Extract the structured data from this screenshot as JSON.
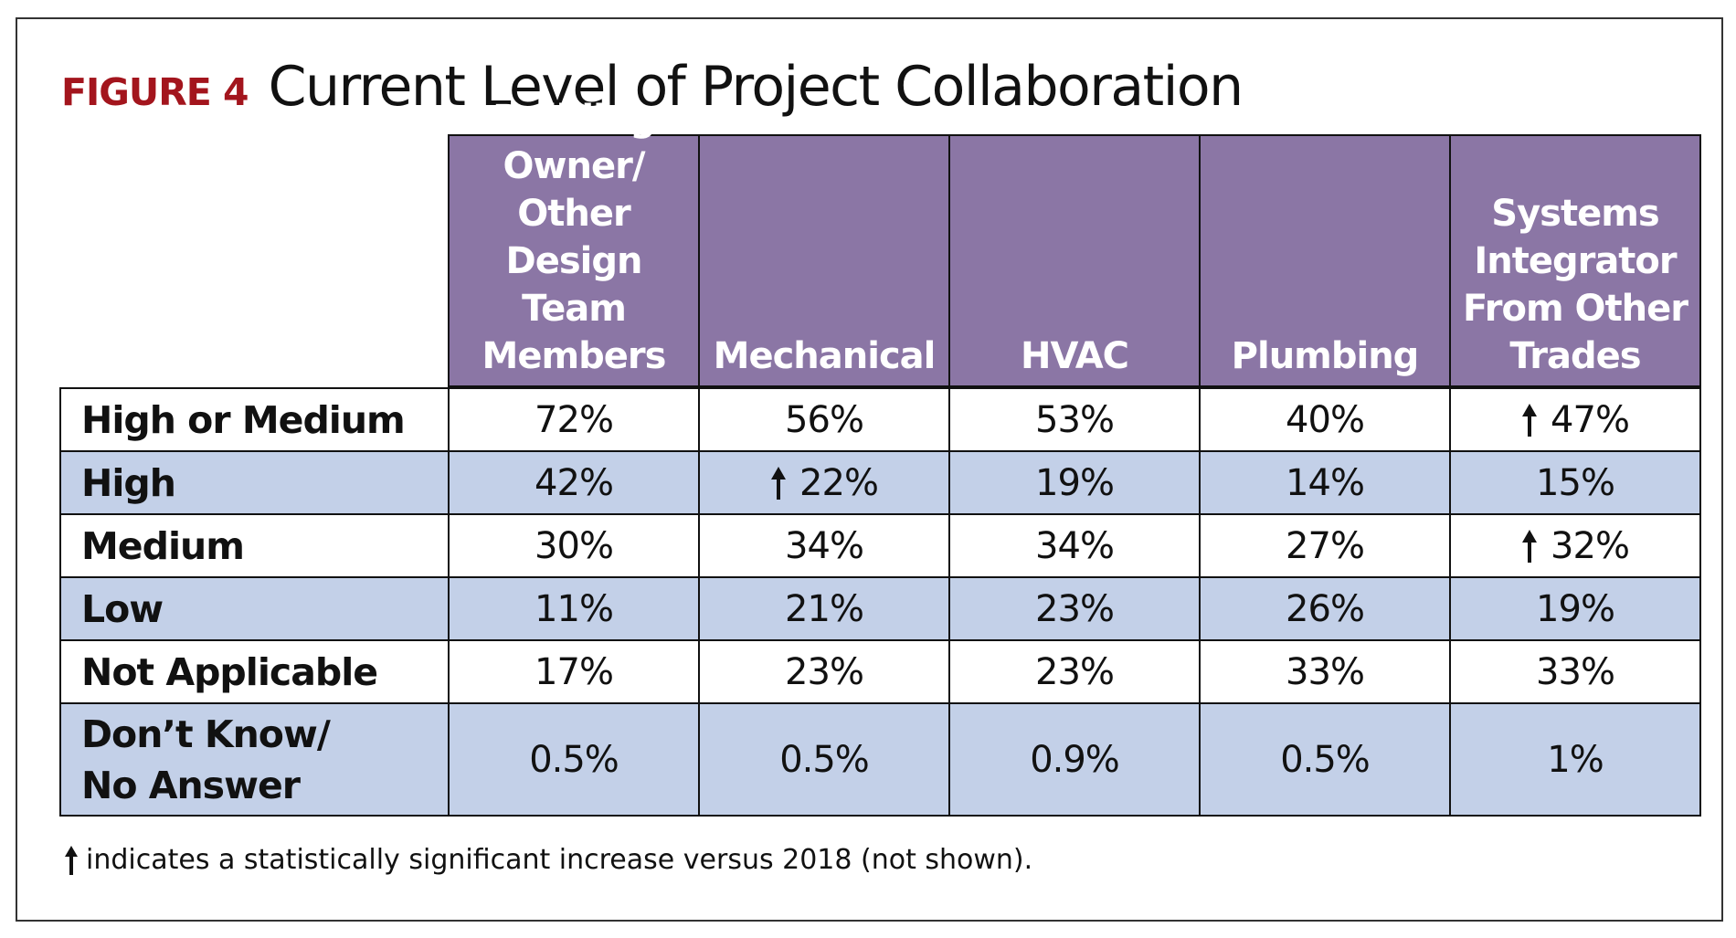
{
  "figure_label": "FIGURE 4",
  "chart_data": {
    "type": "table",
    "title": "Current Level of Project Collaboration",
    "columns": [
      "Building Owner/ Other Design Team Members",
      "Mechanical",
      "HVAC",
      "Plumbing",
      "Systems Integrator From Other Trades"
    ],
    "column_display": [
      "Building\nOwner/\nOther\nDesign Team\nMembers",
      "Mechanical",
      "HVAC",
      "Plumbing",
      "Systems\nIntegrator\nFrom Other\nTrades"
    ],
    "rows": [
      {
        "label": "High or Medium",
        "values": [
          "72%",
          "56%",
          "53%",
          "40%",
          "47%"
        ],
        "significant_increase": [
          false,
          false,
          false,
          false,
          true
        ]
      },
      {
        "label": "High",
        "values": [
          "42%",
          "22%",
          "19%",
          "14%",
          "15%"
        ],
        "significant_increase": [
          false,
          true,
          false,
          false,
          false
        ]
      },
      {
        "label": "Medium",
        "values": [
          "30%",
          "34%",
          "34%",
          "27%",
          "32%"
        ],
        "significant_increase": [
          false,
          false,
          false,
          false,
          true
        ]
      },
      {
        "label": "Low",
        "values": [
          "11%",
          "21%",
          "23%",
          "26%",
          "19%"
        ],
        "significant_increase": [
          false,
          false,
          false,
          false,
          false
        ]
      },
      {
        "label": "Not Applicable",
        "values": [
          "17%",
          "23%",
          "23%",
          "33%",
          "33%"
        ],
        "significant_increase": [
          false,
          false,
          false,
          false,
          false
        ]
      },
      {
        "label": "Don’t Know/\nNo Answer",
        "values": [
          "0.5%",
          "0.5%",
          "0.9%",
          "0.5%",
          "1%"
        ],
        "significant_increase": [
          false,
          false,
          false,
          false,
          false
        ]
      }
    ],
    "footnote": "indicates a statistically significant increase versus 2018 (not shown).",
    "icons": {
      "significant_increase": "up-arrow-icon"
    }
  },
  "colors": {
    "header_bg": "#8b76a5",
    "header_text": "#ffffff",
    "band_bg": "#c3d0e8",
    "row_bg": "#ffffff",
    "figure_label": "#a3151d",
    "border": "#111111"
  }
}
